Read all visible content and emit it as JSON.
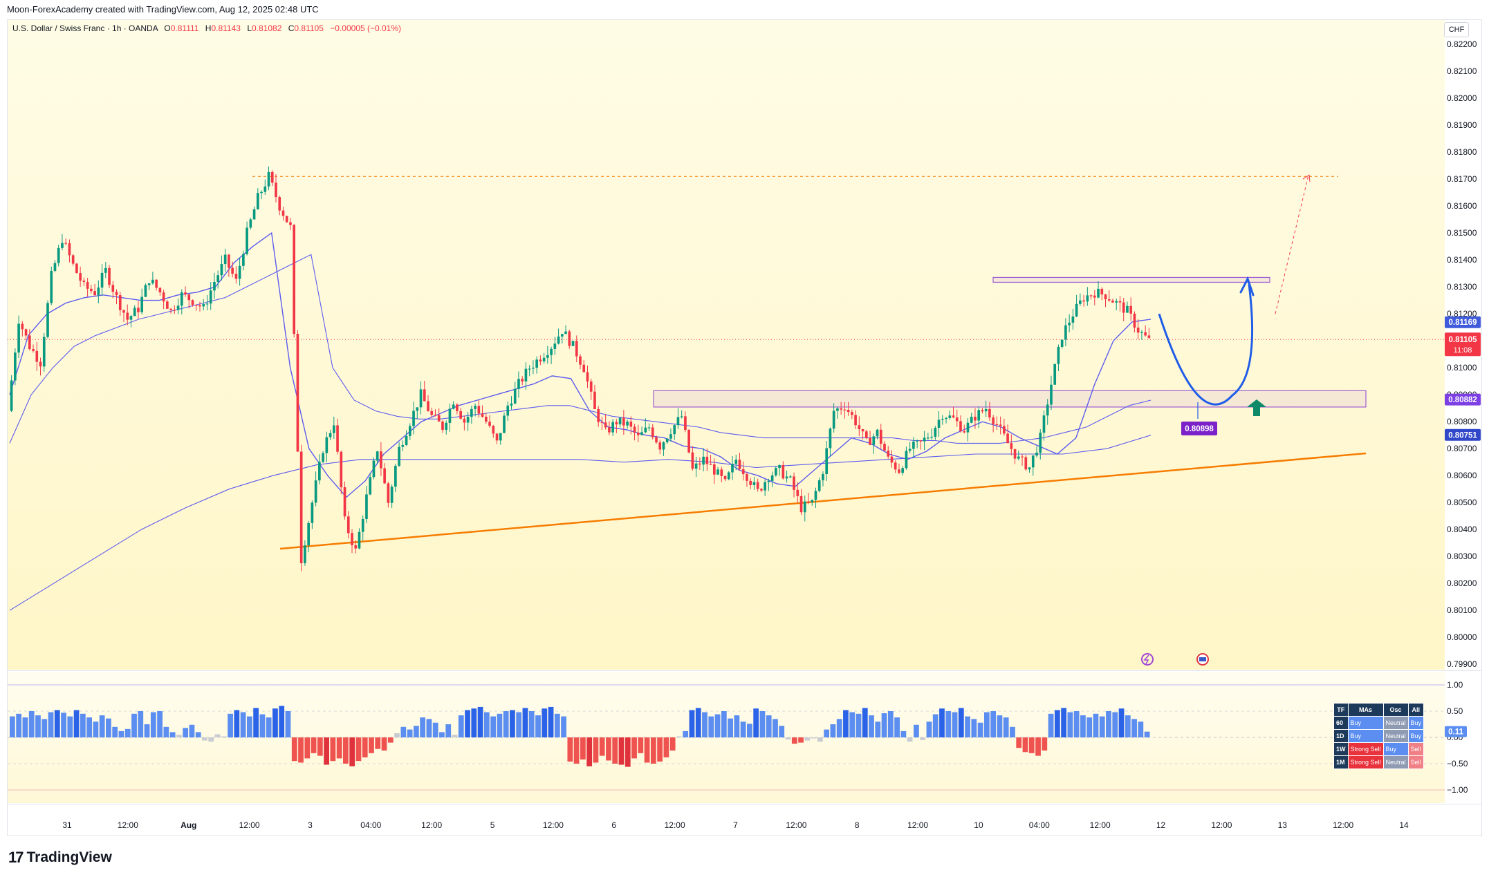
{
  "header": {
    "credit": "Moon-ForexAcademy created with TradingView.com, Aug 12, 2025 02:48 UTC"
  },
  "symbol": {
    "name": "U.S. Dollar / Swiss Franc · 1h · OANDA",
    "open_label": "O",
    "open": "0.81111",
    "high_label": "H",
    "high": "0.81143",
    "low_label": "L",
    "low": "0.81082",
    "close_label": "C",
    "close": "0.81105",
    "change": "−0.00005 (−0.01%)"
  },
  "currency": "CHF",
  "brand": {
    "logo": "17",
    "name": "TradingView"
  },
  "price_tags": {
    "upper_ma": "0.81169",
    "last_price": "0.81105",
    "countdown": "11:08",
    "mid_ma": "0.80882",
    "lower_ma": "0.80751",
    "target": "0.80898"
  },
  "colors": {
    "background_gradient_top": "#fffbe0",
    "background_gradient_bottom": "#fff7cc",
    "bull": "#089981",
    "bear": "#f23645",
    "ma": "#5b5bf0",
    "trendline": "#f57c00",
    "zone": "#9c5cd4",
    "projection": "#1f5de8",
    "histo_pos": "#5b8ef0",
    "histo_neg": "#ef5350"
  },
  "chart_data": {
    "type": "candlestick",
    "ylim": [
      0.7988,
      0.8229
    ],
    "y_ticks": [
      "0.82200",
      "0.82100",
      "0.82000",
      "0.81900",
      "0.81800",
      "0.81700",
      "0.81600",
      "0.81500",
      "0.81400",
      "0.81300",
      "0.81200",
      "0.81100",
      "0.81000",
      "0.80900",
      "0.80800",
      "0.80700",
      "0.80600",
      "0.80500",
      "0.80400",
      "0.80300",
      "0.80200",
      "0.80100",
      "0.80000",
      "0.79900"
    ],
    "x_ticks": [
      "31",
      "12:00",
      "Aug",
      "12:00",
      "3",
      "04:00",
      "12:00",
      "5",
      "12:00",
      "6",
      "12:00",
      "7",
      "12:00",
      "8",
      "12:00",
      "10",
      "04:00",
      "12:00",
      "12",
      "12:00",
      "13",
      "12:00",
      "14"
    ],
    "close_path": [
      0.8084,
      0.8118,
      0.8108,
      0.8102,
      0.8134,
      0.8148,
      0.8138,
      0.813,
      0.8128,
      0.8136,
      0.8126,
      0.8118,
      0.8122,
      0.8133,
      0.8128,
      0.8121,
      0.8127,
      0.8125,
      0.8122,
      0.8132,
      0.814,
      0.8132,
      0.815,
      0.8163,
      0.8171,
      0.816,
      0.8152,
      0.8029,
      0.805,
      0.807,
      0.808,
      0.8043,
      0.8032,
      0.8052,
      0.807,
      0.805,
      0.807,
      0.808,
      0.809,
      0.8082,
      0.8078,
      0.8088,
      0.808,
      0.8086,
      0.808,
      0.8072,
      0.8086,
      0.8094,
      0.81,
      0.8104,
      0.8108,
      0.8114,
      0.8108,
      0.81,
      0.8084,
      0.8076,
      0.808,
      0.8079,
      0.8074,
      0.8078,
      0.8071,
      0.8077,
      0.8082,
      0.8062,
      0.8066,
      0.8062,
      0.8057,
      0.8066,
      0.806,
      0.8054,
      0.806,
      0.8062,
      0.8058,
      0.8048,
      0.805,
      0.8062,
      0.8084,
      0.8086,
      0.808,
      0.8072,
      0.8076,
      0.8066,
      0.8062,
      0.807,
      0.8072,
      0.8076,
      0.8083,
      0.8081,
      0.8077,
      0.8082,
      0.8085,
      0.8079,
      0.8072,
      0.8066,
      0.8063,
      0.8074,
      0.8094,
      0.8112,
      0.812,
      0.8126,
      0.8128,
      0.8127,
      0.8124,
      0.8121,
      0.8114,
      0.811
    ],
    "series": [
      {
        "name": "",
        "kind": "ma_fast",
        "values": [
          0.809,
          0.8112,
          0.812,
          0.8124,
          0.8126,
          0.8127,
          0.8126,
          0.8125,
          0.8125,
          0.8127,
          0.8128,
          0.813,
          0.8139,
          0.8145,
          0.815,
          0.81,
          0.807,
          0.806,
          0.8052,
          0.8058,
          0.8068,
          0.8074,
          0.808,
          0.8083,
          0.8086,
          0.8088,
          0.809,
          0.8092,
          0.8094,
          0.8097,
          0.8096,
          0.8084,
          0.8078,
          0.8077,
          0.8075,
          0.8074,
          0.8071,
          0.807,
          0.8067,
          0.8062,
          0.806,
          0.8057,
          0.8056,
          0.8062,
          0.8068,
          0.8074,
          0.8072,
          0.8068,
          0.8066,
          0.8069,
          0.8074,
          0.8077,
          0.808,
          0.8078,
          0.8074,
          0.8071,
          0.8068,
          0.8074,
          0.8094,
          0.811,
          0.8117,
          0.8118
        ]
      },
      {
        "name": "",
        "kind": "ma_mid",
        "values": [
          0.8072,
          0.809,
          0.81,
          0.8108,
          0.8112,
          0.8115,
          0.8118,
          0.812,
          0.8122,
          0.8124,
          0.8126,
          0.813,
          0.8134,
          0.8138,
          0.8142,
          0.81,
          0.8088,
          0.8084,
          0.8082,
          0.8081,
          0.8081,
          0.8082,
          0.8083,
          0.8084,
          0.8085,
          0.8086,
          0.8086,
          0.8084,
          0.8082,
          0.8081,
          0.808,
          0.8079,
          0.8078,
          0.8076,
          0.8075,
          0.8074,
          0.8074,
          0.8074,
          0.8074,
          0.8074,
          0.8074,
          0.8074,
          0.8073,
          0.8073,
          0.8072,
          0.8072,
          0.8072,
          0.8073,
          0.8074,
          0.8076,
          0.8078,
          0.8082,
          0.8086,
          0.8088
        ]
      },
      {
        "name": "",
        "kind": "ma_slow",
        "values": [
          0.801,
          0.802,
          0.803,
          0.804,
          0.8048,
          0.8055,
          0.806,
          0.8064,
          0.8066,
          0.8066,
          0.8066,
          0.8066,
          0.8066,
          0.8066,
          0.8065,
          0.8066,
          0.8065,
          0.8063,
          0.8064,
          0.8065,
          0.8066,
          0.8067,
          0.8068,
          0.8068,
          0.8068,
          0.807,
          0.8075
        ]
      }
    ],
    "annotations": {
      "resistance_zone": [
        0.8131,
        0.8133
      ],
      "support_zone": [
        0.8088,
        0.8091
      ],
      "previous_high_line": 0.8171,
      "target_projection": 0.8171,
      "pullback_low": 0.80898
    },
    "oscillator": {
      "ylim": [
        -1.25,
        1.25
      ],
      "y_ticks": [
        "1.00",
        "0.50",
        "0.00",
        "−0.50",
        "−1.00"
      ],
      "current_value": "0.11",
      "values": [
        0.4,
        0.45,
        0.38,
        0.5,
        0.42,
        0.35,
        0.48,
        0.52,
        0.47,
        0.4,
        0.52,
        0.45,
        0.38,
        0.3,
        0.42,
        0.36,
        0.2,
        0.12,
        0.16,
        0.45,
        0.5,
        0.25,
        0.48,
        0.5,
        0.2,
        0.1,
        0.05,
        0.18,
        0.24,
        0.1,
        -0.06,
        -0.08,
        0.06,
        0.02,
        0.45,
        0.52,
        0.48,
        0.4,
        0.56,
        0.44,
        0.38,
        0.55,
        0.6,
        0.5,
        -0.45,
        -0.48,
        -0.4,
        -0.3,
        -0.35,
        -0.52,
        -0.45,
        -0.4,
        -0.5,
        -0.55,
        -0.45,
        -0.38,
        -0.3,
        -0.22,
        -0.25,
        -0.1,
        0.08,
        0.2,
        0.15,
        0.22,
        0.38,
        0.35,
        0.28,
        0.1,
        0.25,
        0.05,
        0.42,
        0.52,
        0.55,
        0.58,
        0.48,
        0.4,
        0.45,
        0.5,
        0.52,
        0.48,
        0.56,
        0.5,
        0.42,
        0.55,
        0.58,
        0.45,
        0.4,
        -0.46,
        -0.5,
        -0.42,
        -0.55,
        -0.48,
        -0.35,
        -0.44,
        -0.5,
        -0.52,
        -0.56,
        -0.4,
        -0.3,
        -0.48,
        -0.5,
        -0.46,
        -0.38,
        -0.25,
        0.02,
        0.12,
        0.52,
        0.56,
        0.48,
        0.4,
        0.44,
        0.5,
        0.36,
        0.42,
        0.3,
        0.26,
        0.55,
        0.5,
        0.42,
        0.35,
        0.22,
        -0.04,
        -0.12,
        -0.1,
        -0.06,
        -0.02,
        -0.08,
        0.15,
        0.25,
        0.35,
        0.52,
        0.48,
        0.45,
        0.56,
        0.42,
        0.3,
        0.46,
        0.5,
        0.38,
        0.12,
        -0.08,
        0.24,
        -0.05,
        0.3,
        0.44,
        0.55,
        0.5,
        0.48,
        0.56,
        0.4,
        0.35,
        0.28,
        0.48,
        0.5,
        0.42,
        0.38,
        0.2,
        -0.2,
        -0.28,
        -0.3,
        -0.35,
        -0.25,
        0.45,
        0.52,
        0.56,
        0.48,
        0.5,
        0.42,
        0.38,
        0.45,
        0.4,
        0.5,
        0.48,
        0.55,
        0.42,
        0.35,
        0.3,
        0.11
      ]
    }
  },
  "ta_table": {
    "headers": [
      "TF",
      "MAs",
      "Osc",
      "All"
    ],
    "rows": [
      {
        "tf": "60",
        "mas": "Buy",
        "osc": "Neutral",
        "all": "Buy",
        "c": [
          "buy",
          "neutral",
          "buy"
        ]
      },
      {
        "tf": "1D",
        "mas": "Buy",
        "osc": "Neutral",
        "all": "Buy",
        "c": [
          "buy",
          "neutral",
          "buy"
        ]
      },
      {
        "tf": "1W",
        "mas": "Strong Sell",
        "osc": "Buy",
        "all": "Sell",
        "c": [
          "ssell",
          "buy",
          "sell"
        ]
      },
      {
        "tf": "1M",
        "mas": "Strong Sell",
        "osc": "Neutral",
        "all": "Sell",
        "c": [
          "ssell",
          "neutral",
          "sell"
        ]
      }
    ]
  }
}
